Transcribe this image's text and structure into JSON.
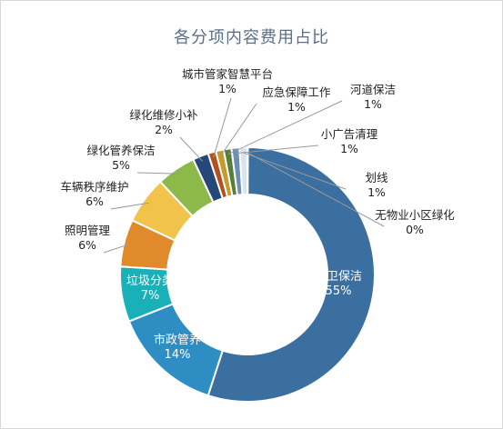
{
  "chart_data": {
    "type": "pie",
    "style": "donut",
    "title": "各分项内容费用占比",
    "categories": [
      "环卫保洁",
      "市政管养",
      "垃圾分类",
      "照明管理",
      "车辆秩序维护",
      "绿化管养保洁",
      "绿化维修小补",
      "城市管家智慧平台",
      "应急保障工作",
      "河道保洁",
      "小广告清理",
      "划线",
      "无物业小区绿化"
    ],
    "values": [
      55,
      14,
      7,
      6,
      6,
      5,
      2,
      1,
      1,
      1,
      1,
      1,
      0
    ],
    "value_labels": [
      "55%",
      "14%",
      "7%",
      "6%",
      "6%",
      "5%",
      "2%",
      "1%",
      "1%",
      "1%",
      "1%",
      "1%",
      "0%"
    ],
    "colors": [
      "#3a6fa0",
      "#2e8ec4",
      "#1ab0b8",
      "#e08a2c",
      "#f2c34b",
      "#8db84a",
      "#25477a",
      "#b3511e",
      "#c79a2a",
      "#5a7d3a",
      "#6a8fb4",
      "#d8e4ee",
      "#9aa7b2"
    ],
    "legend": "none"
  }
}
